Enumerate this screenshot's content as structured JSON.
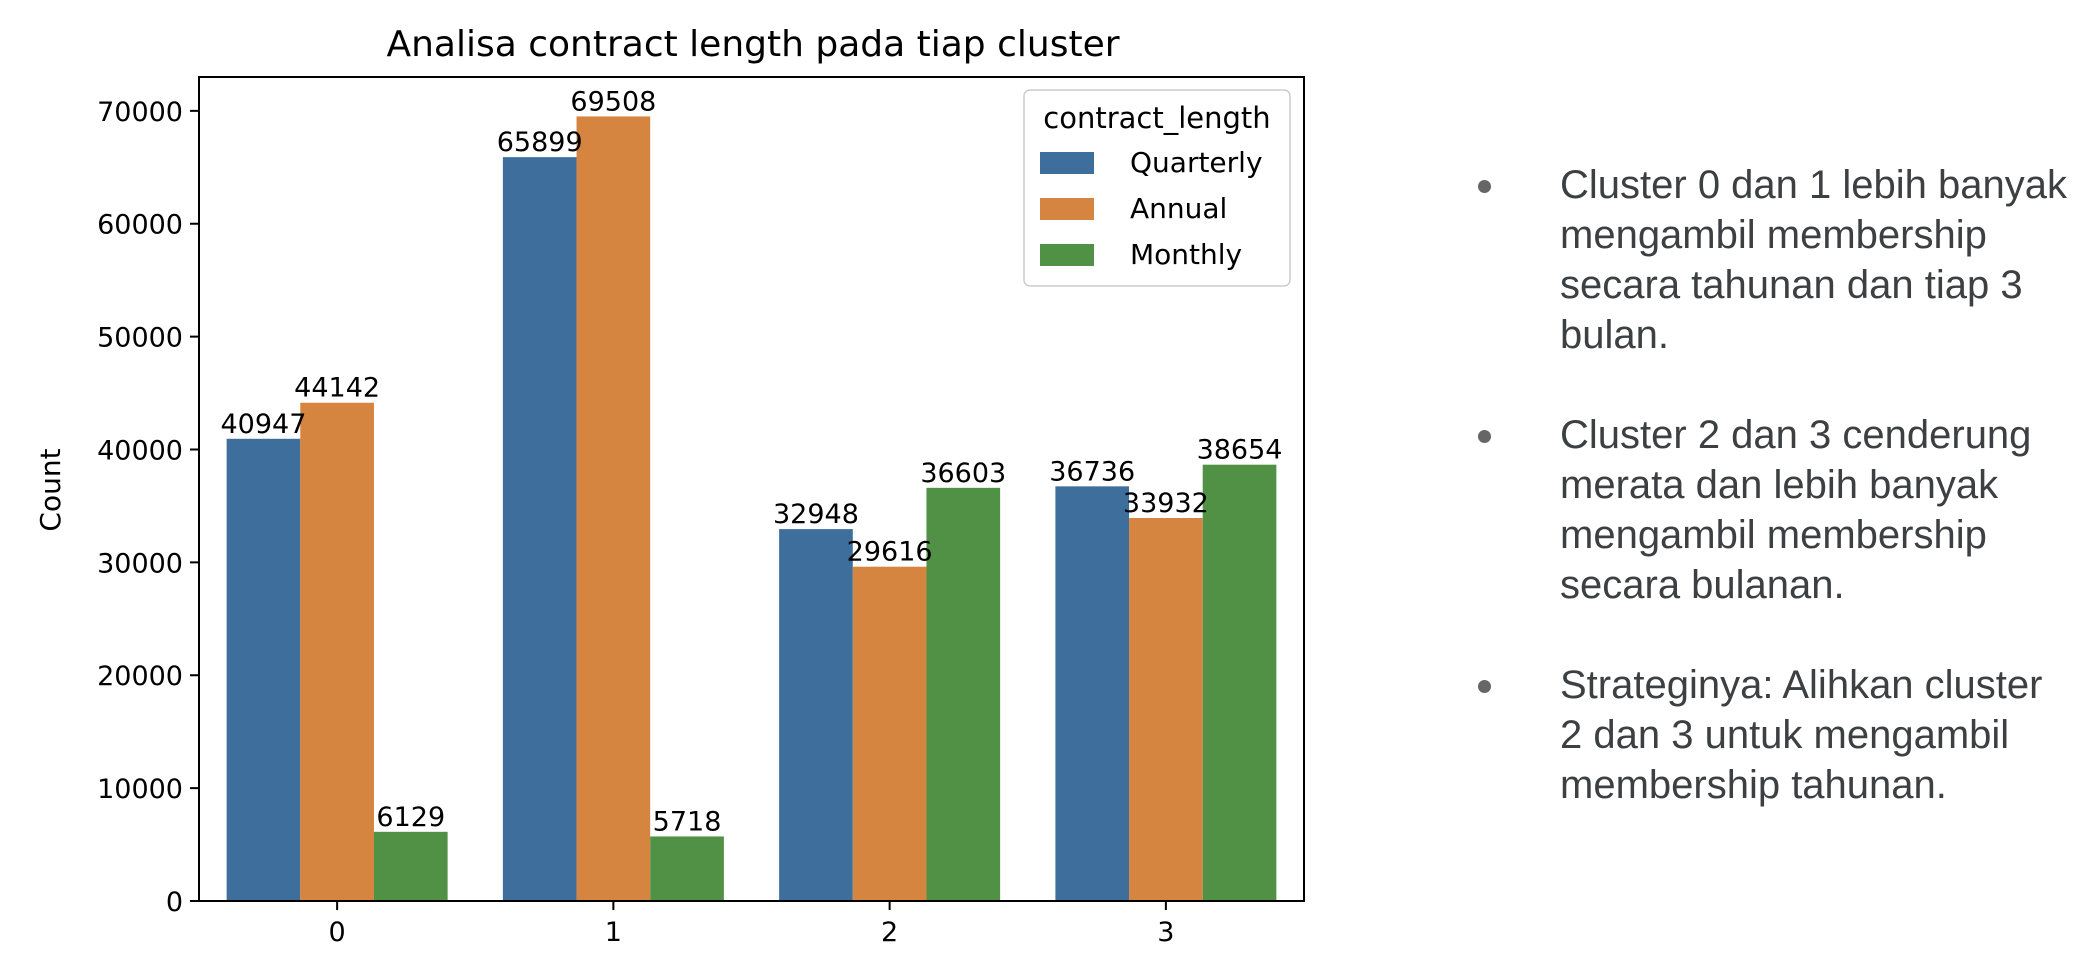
{
  "chart_data": {
    "type": "bar",
    "title": "Analisa contract length pada tiap cluster",
    "xlabel": "",
    "ylabel": "Count",
    "categories": [
      "0",
      "1",
      "2",
      "3"
    ],
    "ylim": [
      0,
      73000
    ],
    "yticks": [
      "0",
      "10000",
      "20000",
      "30000",
      "40000",
      "50000",
      "60000",
      "70000"
    ],
    "legend_title": "contract_length",
    "legend_position": "top-right",
    "series": [
      {
        "name": "Quarterly",
        "color": "#3e6f9c",
        "values": [
          40947,
          65899,
          32948,
          36736
        ],
        "labels": [
          "40947",
          "65899",
          "32948",
          "36736"
        ]
      },
      {
        "name": "Annual",
        "color": "#d58540",
        "values": [
          44142,
          69508,
          29616,
          33932
        ],
        "labels": [
          "44142",
          "69508",
          "29616",
          "33932"
        ]
      },
      {
        "name": "Monthly",
        "color": "#519145",
        "values": [
          6129,
          5718,
          36603,
          38654
        ],
        "labels": [
          "6129",
          "5718",
          "36603",
          "38654"
        ]
      }
    ]
  },
  "notes": [
    "Cluster 0 dan 1 lebih banyak mengambil membership secara tahunan dan tiap 3 bulan.",
    "Cluster 2 dan 3 cenderung merata dan lebih banyak mengambil membership secara bulanan.",
    "Strateginya: Alihkan cluster 2 dan 3 untuk mengambil membership tahunan."
  ]
}
